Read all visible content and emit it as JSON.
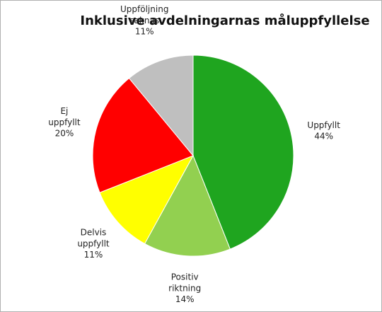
{
  "chart_data": {
    "type": "pie",
    "title": "Inklusive avdelningarnas måluppfyllelse",
    "categories": [
      "Uppfyllt",
      "Positiv riktning",
      "Delvis uppfyllt",
      "Ej uppfyllt",
      "Uppföljning saknas"
    ],
    "values": [
      44,
      14,
      11,
      20,
      11
    ],
    "value_labels": [
      "44%",
      "14%",
      "11%",
      "20%",
      "11%"
    ],
    "colors": [
      "#1fa51f",
      "#92d050",
      "#ffff00",
      "#ff0000",
      "#bfbfbf"
    ]
  }
}
